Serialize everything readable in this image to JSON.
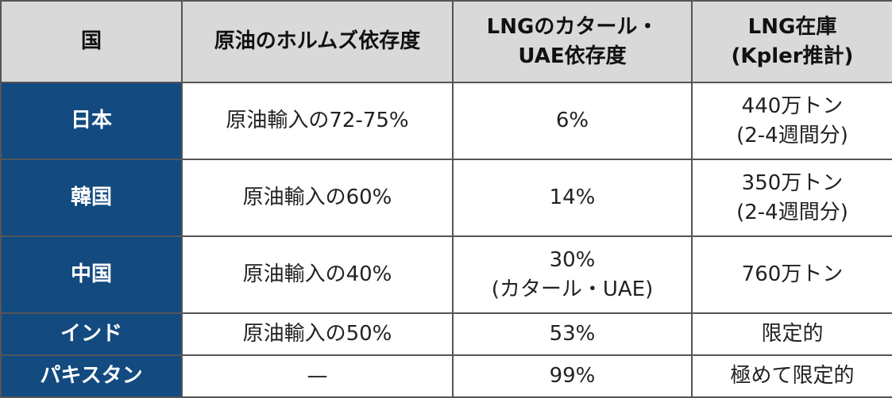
{
  "table": {
    "headers": [
      "国",
      "原油のホルムズ依存度",
      "LNGのカタール・\nUAE依存度",
      "LNG在庫\n(Kpler推計)"
    ],
    "rows": [
      {
        "country": "日本",
        "oil": "原油輸入の72-75%",
        "lng": "6%",
        "stock": "440万トン\n(2-4週間分)"
      },
      {
        "country": "韓国",
        "oil": "原油輸入の60%",
        "lng": "14%",
        "stock": "350万トン\n(2-4週間分)"
      },
      {
        "country": "中国",
        "oil": "原油輸入の40%",
        "lng": "30%\n(カタール・UAE)",
        "stock": "760万トン"
      },
      {
        "country": "インド",
        "oil": "原油輸入の50%",
        "lng": "53%",
        "stock": "限定的"
      },
      {
        "country": "パキスタン",
        "oil": "—",
        "lng": "99%",
        "stock": "極めて限定的"
      }
    ]
  },
  "colors": {
    "header_bg": "#d9d9d9",
    "country_bg": "#134a80",
    "border": "#555555"
  }
}
